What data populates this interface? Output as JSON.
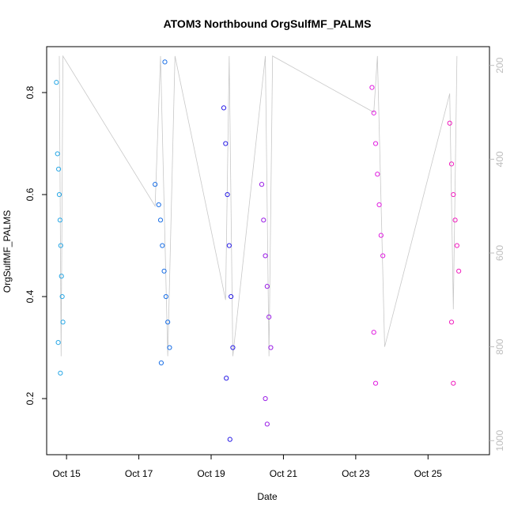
{
  "chart_data": {
    "type": "scatter",
    "title": "ATOM3 Northbound OrgSulfMF_PALMS",
    "xlabel": "Date",
    "ylabel": "OrgSulfMF_PALMS",
    "x_ticks": [
      "Oct 15",
      "Oct 17",
      "Oct 19",
      "Oct 21",
      "Oct 23",
      "Oct 25"
    ],
    "y_ticks": [
      "0.2",
      "0.4",
      "0.6",
      "0.8"
    ],
    "y2_ticks": [
      "200",
      "400",
      "600",
      "800",
      "1000"
    ],
    "xlim_days": [
      14.45,
      26.7
    ],
    "ylim": [
      0.09,
      0.89
    ],
    "y2lim": [
      1030,
      160
    ],
    "grid": false,
    "colors": {
      "overlay_line": "#c8c8c8",
      "right_axis": "#bdbdbd",
      "series": [
        "#29a8e6",
        "#1a6fe6",
        "#2a1ee6",
        "#9a1ee6",
        "#e01ee0",
        "#f01ebe"
      ]
    },
    "series": [
      {
        "x": [
          14.72,
          14.75,
          14.78,
          14.8,
          14.82,
          14.84,
          14.86,
          14.88,
          14.9,
          14.77,
          14.83
        ],
        "y": [
          0.82,
          0.68,
          0.65,
          0.6,
          0.55,
          0.5,
          0.44,
          0.4,
          0.35,
          0.31,
          0.25
        ],
        "color_key": 0
      },
      {
        "x": [
          17.45,
          17.55,
          17.6,
          17.65,
          17.7,
          17.75,
          17.8,
          17.85,
          17.62,
          17.72
        ],
        "y": [
          0.62,
          0.58,
          0.55,
          0.5,
          0.45,
          0.4,
          0.35,
          0.3,
          0.27,
          0.86
        ],
        "color_key": 1
      },
      {
        "x": [
          19.35,
          19.4,
          19.45,
          19.5,
          19.55,
          19.6,
          19.42,
          19.52
        ],
        "y": [
          0.77,
          0.7,
          0.6,
          0.5,
          0.4,
          0.3,
          0.24,
          0.12
        ],
        "color_key": 2
      },
      {
        "x": [
          20.4,
          20.45,
          20.5,
          20.55,
          20.6,
          20.65,
          20.5,
          20.55
        ],
        "y": [
          0.62,
          0.55,
          0.48,
          0.42,
          0.36,
          0.3,
          0.2,
          0.15
        ],
        "color_key": 3
      },
      {
        "x": [
          23.45,
          23.5,
          23.55,
          23.6,
          23.65,
          23.7,
          23.75,
          23.5,
          23.55
        ],
        "y": [
          0.81,
          0.76,
          0.7,
          0.64,
          0.58,
          0.52,
          0.48,
          0.33,
          0.23
        ],
        "color_key": 4
      },
      {
        "x": [
          25.6,
          25.65,
          25.7,
          25.75,
          25.8,
          25.85,
          25.65,
          25.7
        ],
        "y": [
          0.74,
          0.66,
          0.6,
          0.55,
          0.5,
          0.45,
          0.35,
          0.23
        ],
        "color_key": 5
      }
    ],
    "altitude_trace": {
      "x": [
        14.8,
        14.85,
        14.9,
        17.45,
        17.6,
        17.8,
        18.0,
        19.4,
        19.5,
        19.6,
        20.5,
        20.6,
        20.7,
        23.5,
        23.6,
        23.8,
        25.6,
        25.7,
        25.8
      ],
      "y2": [
        180,
        820,
        180,
        500,
        180,
        820,
        180,
        700,
        180,
        820,
        180,
        820,
        180,
        300,
        180,
        800,
        260,
        720,
        180
      ]
    }
  }
}
